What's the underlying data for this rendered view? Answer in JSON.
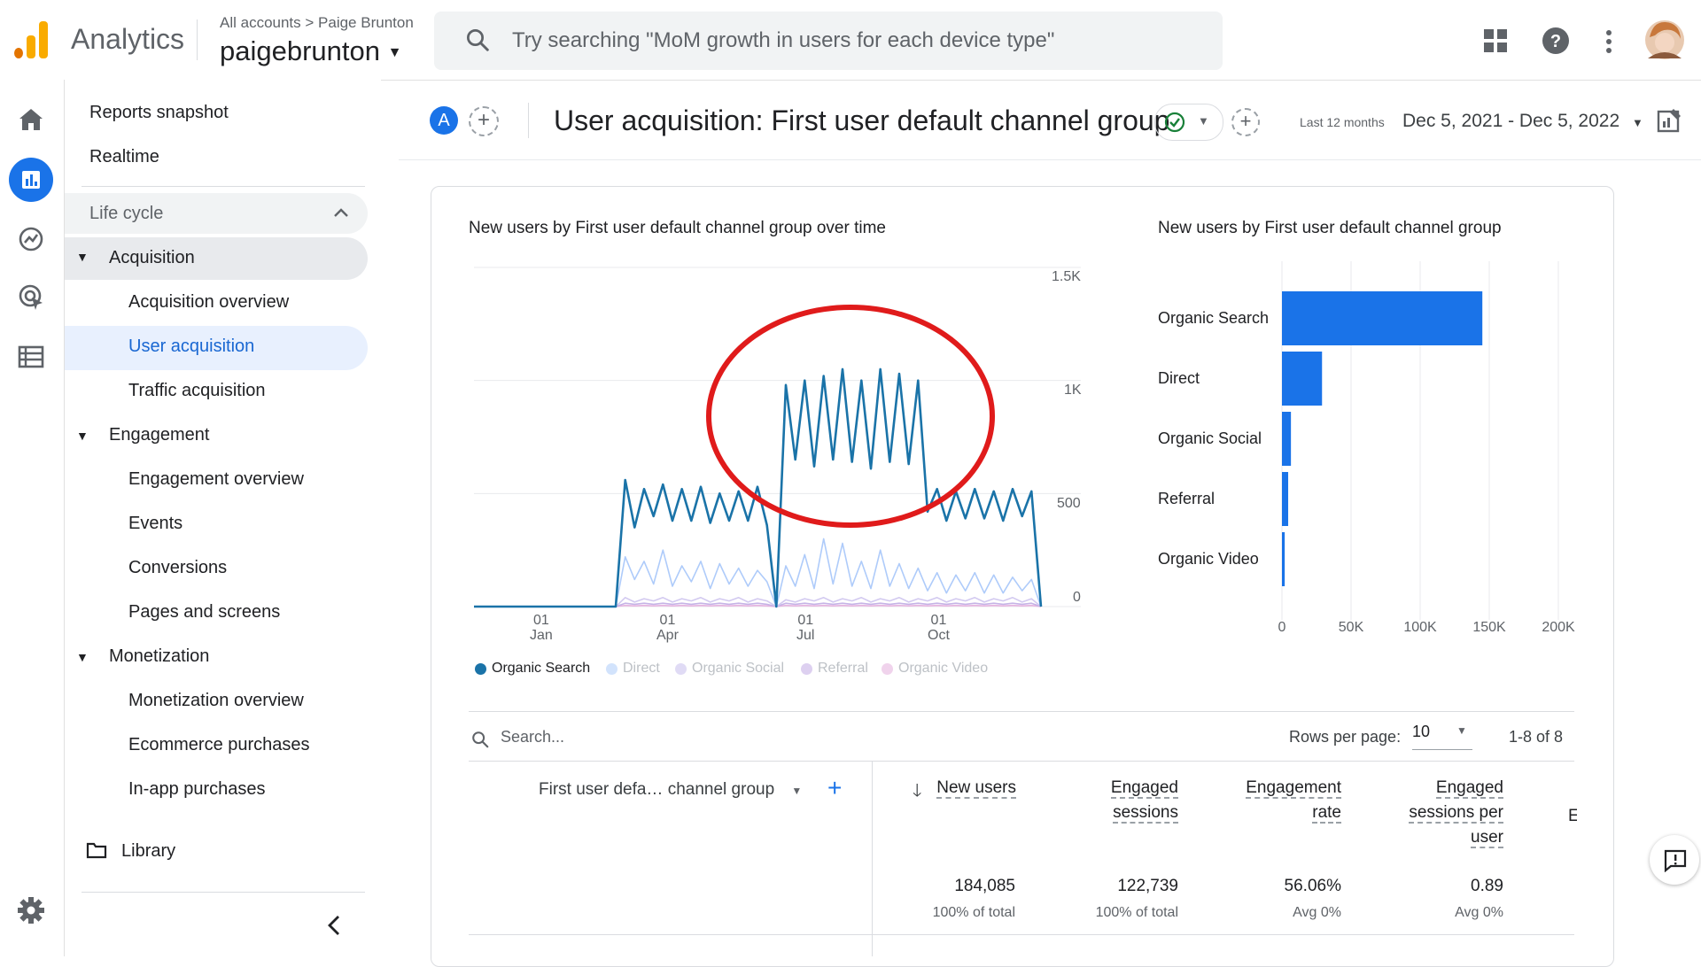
{
  "header": {
    "app_title": "Analytics",
    "breadcrumb": "All accounts > Paige Brunton",
    "property": "paigebrunton",
    "search_placeholder": "Try searching \"MoM growth in users for each device type\""
  },
  "nav": {
    "items": [
      "Reports snapshot",
      "Realtime"
    ],
    "section": "Life cycle",
    "groups": [
      {
        "label": "Acquisition",
        "children": [
          "Acquisition overview",
          "User acquisition",
          "Traffic acquisition"
        ]
      },
      {
        "label": "Engagement",
        "children": [
          "Engagement overview",
          "Events",
          "Conversions",
          "Pages and screens"
        ]
      },
      {
        "label": "Monetization",
        "children": [
          "Monetization overview",
          "Ecommerce purchases",
          "In-app purchases"
        ]
      }
    ],
    "library": "Library"
  },
  "report": {
    "avatar_letter": "A",
    "title": "User acquisition: First user default channel group",
    "date_label": "Last 12 months",
    "date_range": "Dec 5, 2021 - Dec 5, 2022"
  },
  "chart_data": [
    {
      "type": "line",
      "title": "New users by First user default channel group over time",
      "x_ticks": [
        "01 Jan",
        "01 Apr",
        "01 Jul",
        "01 Oct"
      ],
      "y_ticks": [
        "1.5K",
        "1K",
        "500",
        "0"
      ],
      "ylim": [
        0,
        1500
      ],
      "series": [
        {
          "name": "Organic Search",
          "color": "#1a73a8",
          "values": [
            0,
            0,
            0,
            0,
            0,
            0,
            0,
            0,
            0,
            0,
            0,
            0,
            0,
            0,
            0,
            0,
            560,
            350,
            520,
            400,
            540,
            380,
            520,
            380,
            530,
            370,
            500,
            380,
            510,
            380,
            530,
            360,
            0,
            980,
            650,
            1000,
            620,
            1020,
            650,
            1050,
            640,
            1000,
            610,
            1050,
            640,
            1030,
            630,
            1000,
            420,
            520,
            380,
            510,
            390,
            520,
            390,
            510,
            380,
            520,
            400,
            510,
            0
          ]
        },
        {
          "name": "Direct",
          "color": "#aecbfa",
          "values": [
            0,
            0,
            0,
            0,
            0,
            0,
            0,
            0,
            0,
            0,
            0,
            0,
            0,
            0,
            0,
            0,
            220,
            120,
            200,
            100,
            250,
            90,
            180,
            110,
            200,
            80,
            190,
            100,
            170,
            90,
            160,
            110,
            0,
            180,
            90,
            230,
            80,
            300,
            100,
            280,
            90,
            200,
            80,
            250,
            90,
            190,
            80,
            170,
            70,
            150,
            60,
            140,
            70,
            150,
            60,
            140,
            60,
            130,
            70,
            120,
            0
          ]
        },
        {
          "name": "Organic Social",
          "color": "#d2c9f0",
          "values": [
            0,
            0,
            0,
            0,
            0,
            0,
            0,
            0,
            0,
            0,
            0,
            0,
            0,
            0,
            0,
            0,
            40,
            20,
            35,
            25,
            40,
            20,
            35,
            25,
            40,
            20,
            35,
            25,
            40,
            20,
            35,
            25,
            0,
            30,
            20,
            35,
            25,
            40,
            20,
            35,
            25,
            40,
            20,
            35,
            25,
            40,
            20,
            35,
            25,
            40,
            20,
            35,
            25,
            40,
            20,
            35,
            25,
            40,
            20,
            35,
            0
          ]
        },
        {
          "name": "Referral",
          "color": "#c5b3e6",
          "values": [
            0,
            0,
            0,
            0,
            0,
            0,
            0,
            0,
            0,
            0,
            0,
            0,
            0,
            0,
            0,
            0,
            15,
            10,
            15,
            10,
            15,
            10,
            15,
            10,
            15,
            10,
            15,
            10,
            15,
            10,
            15,
            10,
            0,
            15,
            10,
            15,
            10,
            15,
            10,
            15,
            10,
            15,
            10,
            15,
            10,
            15,
            10,
            15,
            10,
            15,
            10,
            15,
            10,
            15,
            10,
            15,
            10,
            15,
            10,
            15,
            0
          ]
        },
        {
          "name": "Organic Video",
          "color": "#e6b3e0",
          "values": [
            0,
            0,
            0,
            0,
            0,
            0,
            0,
            0,
            0,
            0,
            0,
            0,
            0,
            0,
            0,
            0,
            5,
            3,
            5,
            3,
            5,
            3,
            5,
            3,
            5,
            3,
            5,
            3,
            5,
            3,
            5,
            3,
            0,
            5,
            3,
            5,
            3,
            5,
            3,
            5,
            3,
            5,
            3,
            5,
            3,
            5,
            3,
            5,
            3,
            5,
            3,
            5,
            3,
            5,
            3,
            5,
            3,
            5,
            3,
            5,
            0
          ]
        }
      ]
    },
    {
      "type": "bar",
      "orientation": "horizontal",
      "title": "New users by First user default channel group",
      "categories": [
        "Organic Search",
        "Direct",
        "Organic Social",
        "Referral",
        "Organic Video"
      ],
      "values": [
        145000,
        29000,
        6500,
        4500,
        2000
      ],
      "x_ticks": [
        "0",
        "50K",
        "100K",
        "150K",
        "200K"
      ],
      "xlim": [
        0,
        200000
      ],
      "color": "#1a73e8"
    }
  ],
  "table": {
    "search_placeholder": "Search...",
    "rows_per_page_label": "Rows per page:",
    "rows_per_page": "10",
    "pagination": "1-8 of 8",
    "dimension_header": "First user defa… channel group",
    "columns": [
      {
        "label": "New users",
        "total": "184,085",
        "sub": "100% of total"
      },
      {
        "label": "Engaged sessions",
        "total": "122,739",
        "sub": "100% of total"
      },
      {
        "label": "Engagement rate",
        "total": "56.06%",
        "sub": "Avg 0%"
      },
      {
        "label": "Engaged sessions per user",
        "total": "0.89",
        "sub": "Avg 0%"
      }
    ],
    "overflow_header": "E"
  }
}
